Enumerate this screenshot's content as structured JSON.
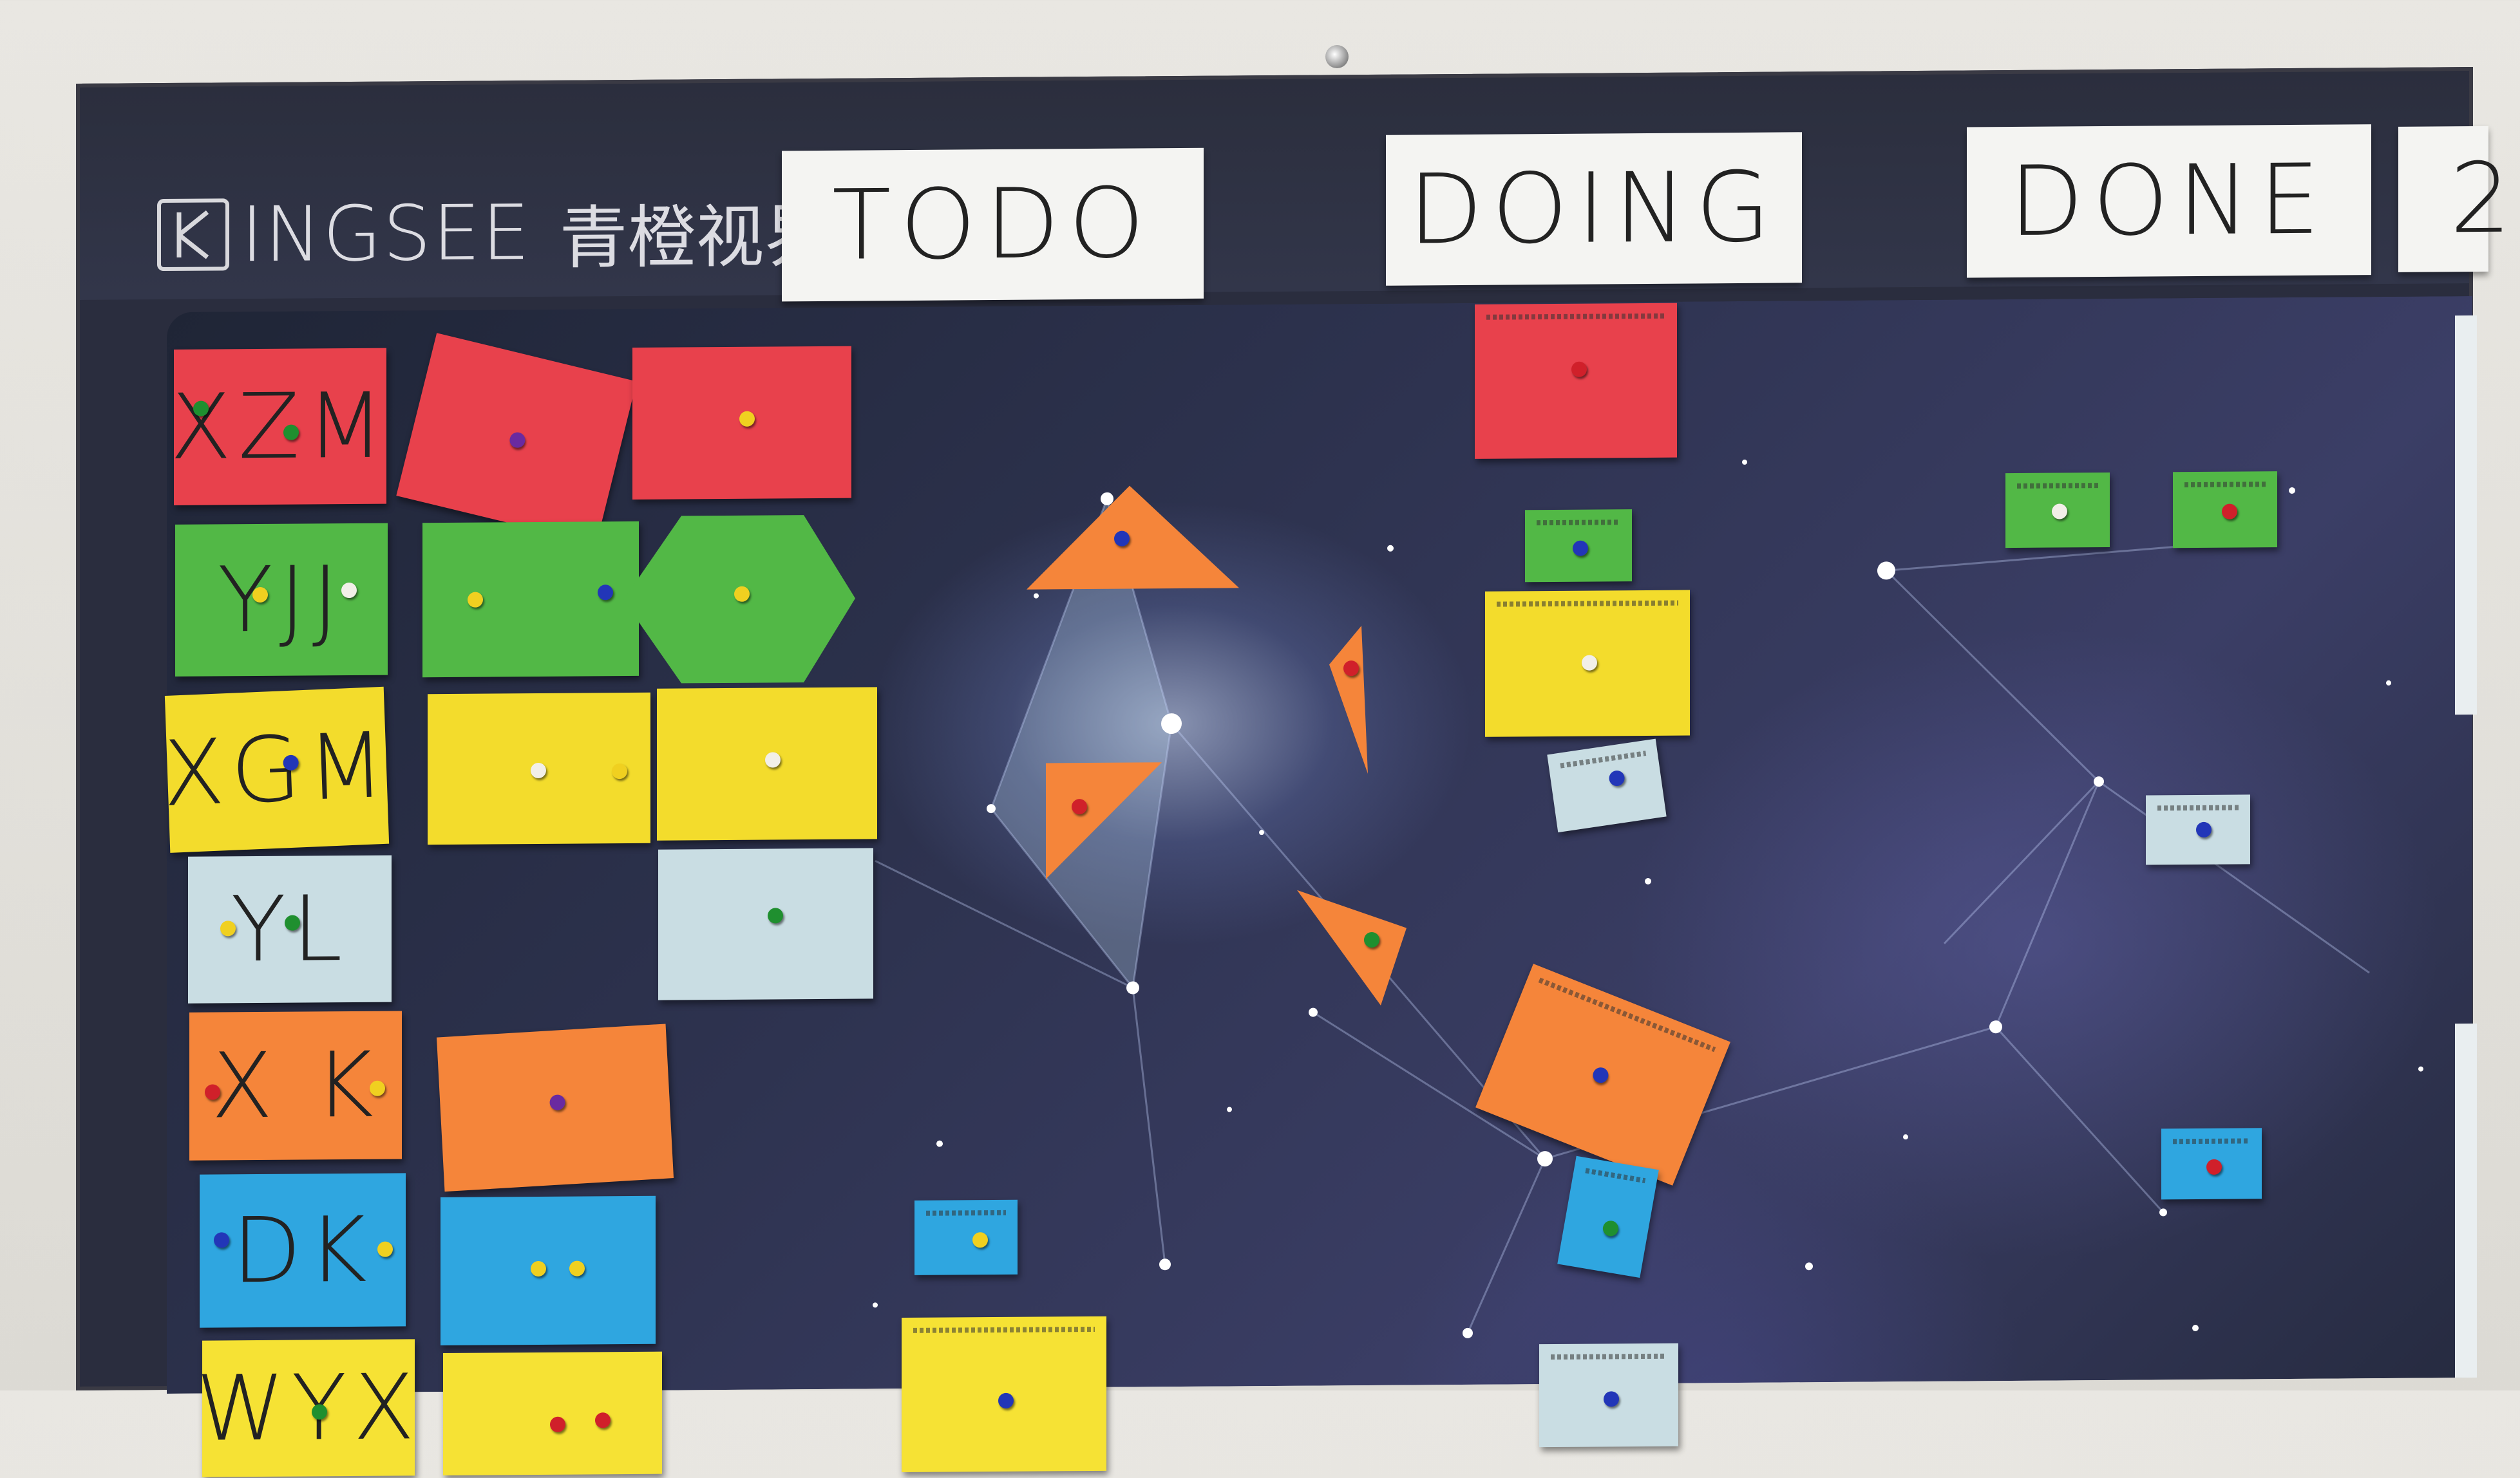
{
  "logo": {
    "brand": "INGSEE",
    "brand_cn": "青橙视界",
    "icon": "k-box-logo-icon"
  },
  "columns": {
    "todo": "TODO",
    "doing": "DOING",
    "done": "DONE",
    "next_partial": "2"
  },
  "rows": [
    {
      "initials": "XZM",
      "color": "#e8414c"
    },
    {
      "initials": "YJJ",
      "color": "#52b846"
    },
    {
      "initials": "XGM",
      "color": "#f3dc2c"
    },
    {
      "initials": "YL",
      "color": "#c9dde3"
    },
    {
      "initials": "X K",
      "color": "#f5853a"
    },
    {
      "initials": "DK",
      "color": "#2fa6e0"
    },
    {
      "initials": "WYX",
      "color": "#f6e234"
    }
  ],
  "palette": {
    "red": "#e8414c",
    "green": "#52b846",
    "yellow": "#f3dc2c",
    "pale_blue": "#c9dde3",
    "orange": "#f5853a",
    "blue": "#2fa6e0",
    "pin_red": "#d0202a",
    "pin_green": "#1f8f2f",
    "pin_blue": "#2236b8",
    "pin_yellow": "#f0d020",
    "pin_white": "#f2efe8",
    "pin_purple": "#6a2aa0"
  }
}
